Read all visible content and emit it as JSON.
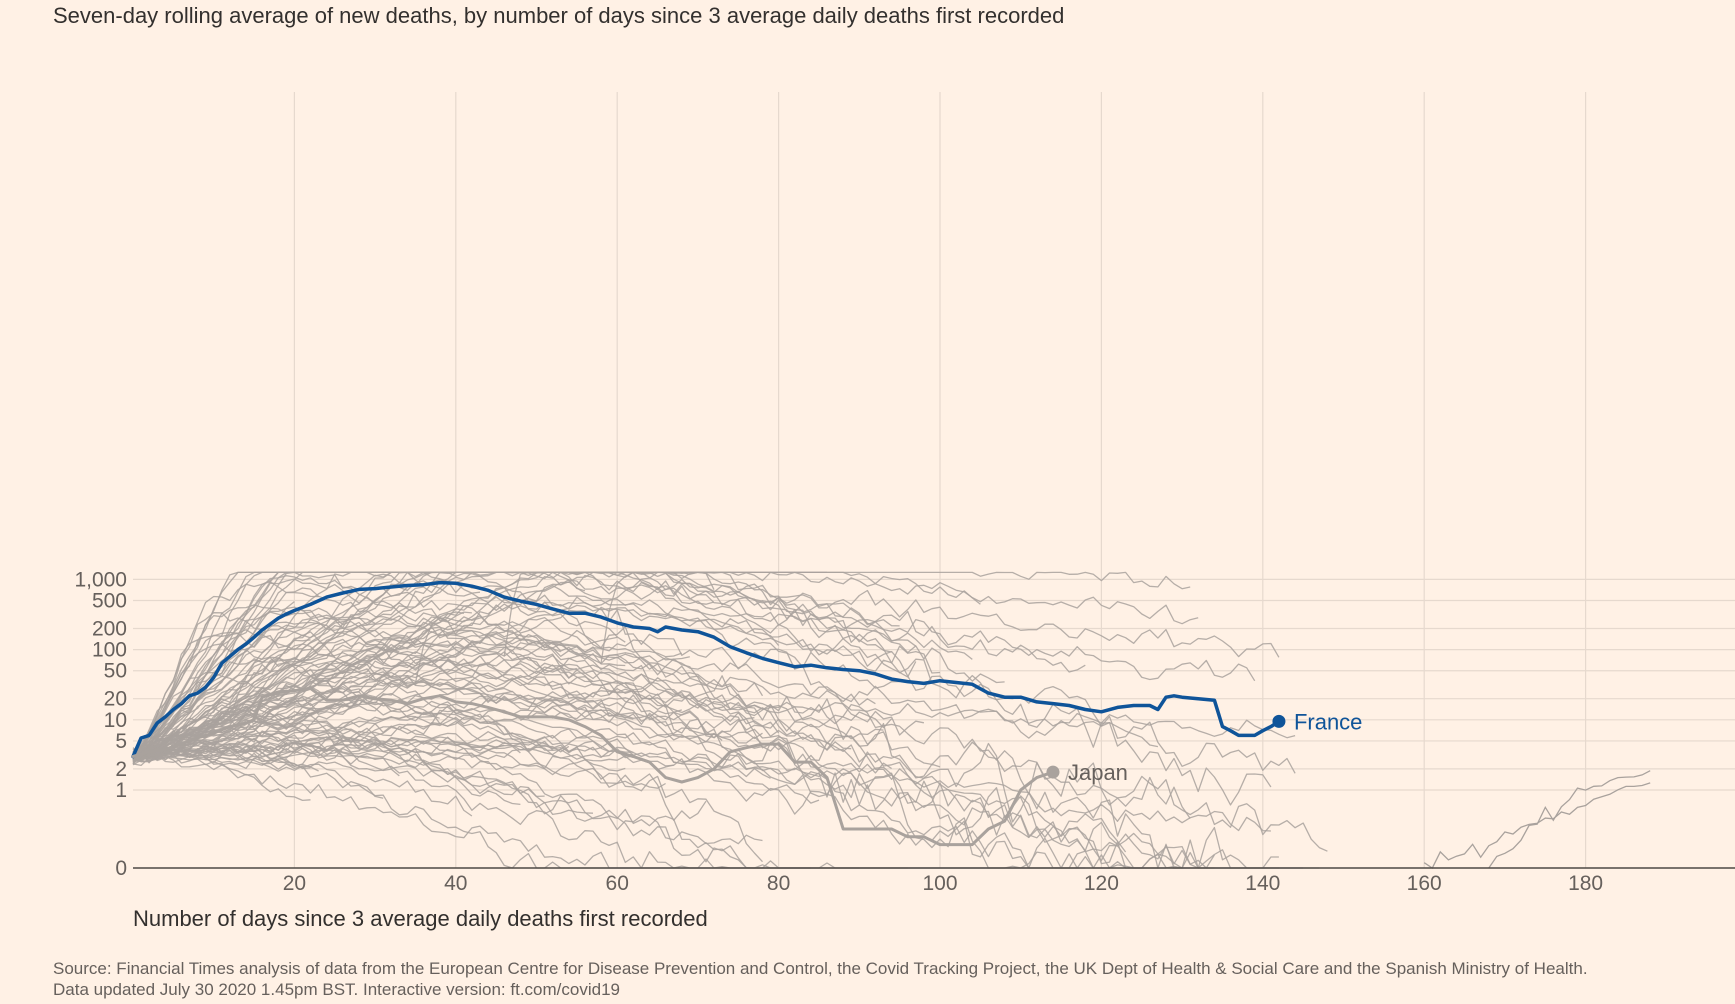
{
  "chart_data": {
    "type": "line",
    "title": "Seven-day rolling average of new deaths, by number of days since 3 average daily deaths first recorded",
    "xlabel": "Number of days since 3 average daily deaths first recorded",
    "ylabel": "",
    "xlim": [
      0,
      198
    ],
    "y_scale": "symlog",
    "y_ticks": [
      0,
      1,
      2,
      5,
      10,
      20,
      50,
      100,
      200,
      500,
      1000
    ],
    "y_tick_labels": [
      "0",
      "1",
      "2",
      "5",
      "10",
      "20",
      "50",
      "100",
      "200",
      "500",
      "1,000"
    ],
    "x_ticks": [
      20,
      40,
      60,
      80,
      100,
      120,
      140,
      160,
      180
    ],
    "x_tick_labels": [
      "20",
      "40",
      "60",
      "80",
      "100",
      "120",
      "140",
      "160",
      "180"
    ],
    "grid": true,
    "highlight_color": "#0f5499",
    "secondary_color": "#a9a29d",
    "background_color": "#fff1e5",
    "series": [
      {
        "name": "France",
        "highlight": "primary",
        "x": [
          0,
          1,
          2,
          3,
          4,
          5,
          6,
          7,
          8,
          9,
          10,
          11,
          12,
          13,
          14,
          15,
          16,
          17,
          18,
          19,
          20,
          22,
          24,
          26,
          28,
          30,
          32,
          34,
          36,
          38,
          40,
          42,
          44,
          46,
          48,
          50,
          52,
          54,
          56,
          58,
          60,
          62,
          64,
          65,
          66,
          68,
          70,
          72,
          74,
          76,
          78,
          80,
          82,
          84,
          86,
          88,
          90,
          92,
          94,
          96,
          98,
          100,
          102,
          104,
          106,
          108,
          110,
          112,
          114,
          116,
          118,
          120,
          122,
          124,
          126,
          127,
          128,
          129,
          130,
          132,
          134,
          135,
          136,
          137,
          138,
          139,
          140,
          141,
          142
        ],
        "y": [
          3,
          5.5,
          6,
          9,
          11,
          14,
          17,
          22,
          24,
          29,
          40,
          64,
          80,
          100,
          120,
          150,
          190,
          230,
          280,
          320,
          360,
          440,
          560,
          640,
          720,
          740,
          780,
          820,
          840,
          900,
          880,
          800,
          700,
          560,
          490,
          440,
          380,
          330,
          330,
          290,
          240,
          210,
          200,
          180,
          210,
          190,
          180,
          150,
          110,
          90,
          75,
          65,
          57,
          60,
          55,
          52,
          50,
          45,
          38,
          35,
          33,
          36,
          34,
          32,
          24,
          21,
          21,
          18,
          17,
          16,
          14,
          13,
          15,
          16,
          16,
          14,
          21,
          22,
          21,
          20,
          19,
          8,
          7,
          6,
          6,
          6,
          7,
          8,
          9.5
        ]
      },
      {
        "name": "Japan",
        "highlight": "secondary",
        "x": [
          0,
          2,
          4,
          6,
          8,
          10,
          12,
          14,
          15,
          16,
          18,
          20,
          22,
          24,
          26,
          28,
          30,
          32,
          34,
          36,
          38,
          40,
          42,
          44,
          46,
          48,
          50,
          52,
          54,
          56,
          58,
          60,
          62,
          64,
          66,
          68,
          70,
          72,
          74,
          76,
          78,
          80,
          82,
          84,
          86,
          88,
          90,
          92,
          94,
          96,
          98,
          100,
          102,
          104,
          106,
          108,
          110,
          112,
          114
        ],
        "y": [
          3,
          3.5,
          3.8,
          4.5,
          5.5,
          6.5,
          8,
          9,
          10,
          21,
          25,
          26,
          28,
          19,
          19,
          22,
          20,
          19,
          17,
          20,
          22,
          18,
          17,
          15,
          13,
          11,
          11,
          11,
          10,
          8,
          6,
          3.5,
          3,
          2.5,
          1.5,
          1.3,
          1.5,
          2,
          3.5,
          4,
          4.5,
          4.5,
          2.5,
          2.5,
          1.5,
          0.5,
          0.5,
          0.5,
          0.5,
          0.4,
          0.4,
          0.3,
          0.3,
          0.3,
          0.5,
          0.6,
          1.0,
          1.5,
          1.8
        ]
      }
    ],
    "background_series_note": ""
  },
  "labels": {
    "subtitle": "Seven-day rolling average of new deaths, by number of days since 3 average daily deaths first recorded",
    "xaxis_title": "Number of days since 3 average daily deaths first recorded",
    "source_line1": "Source: Financial Times analysis of data from the European Centre for Disease Prevention and Control, the Covid Tracking Project, the UK Dept of Health & Social Care and the Spanish Ministry of Health.",
    "source_line2": "Data updated July 30 2020 1.45pm BST. Interactive version: ft.com/covid19",
    "france_label": "France",
    "japan_label": "Japan"
  }
}
